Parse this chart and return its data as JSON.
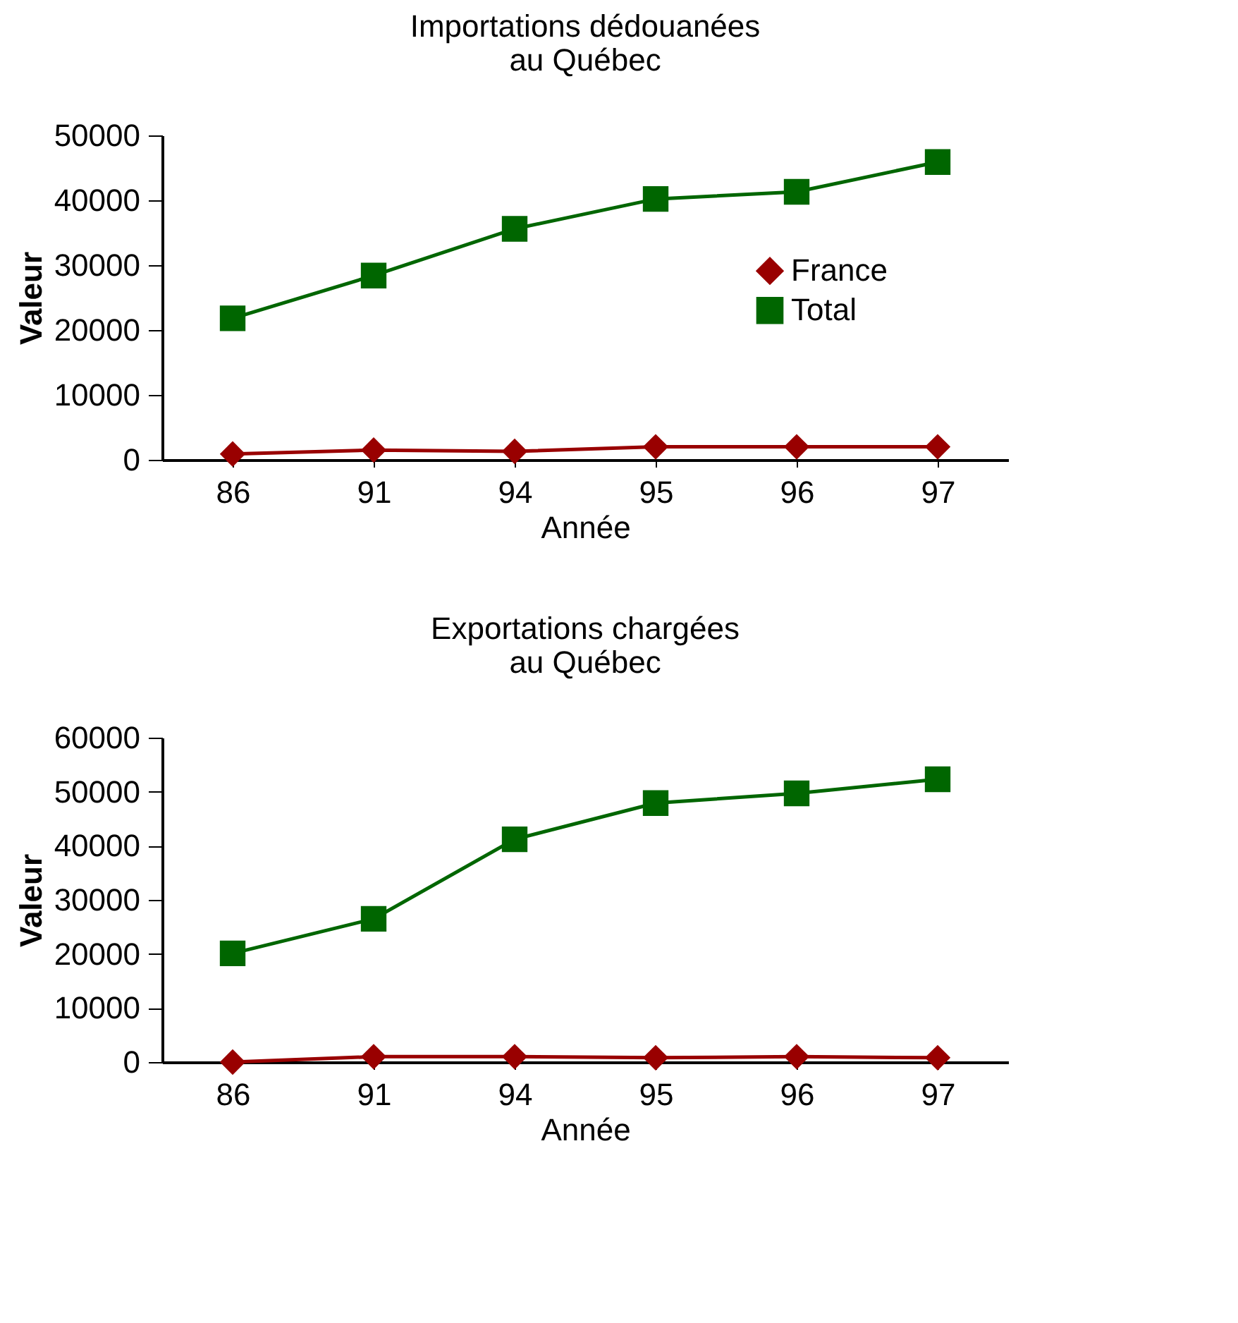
{
  "chart_data": [
    {
      "type": "line",
      "title": "Importations dédouanées\nau Québec",
      "xlabel": "Année",
      "ylabel": "Valeur",
      "categories": [
        "86",
        "91",
        "94",
        "95",
        "96",
        "97"
      ],
      "ylim": [
        0,
        50000
      ],
      "yticks": [
        0,
        10000,
        20000,
        30000,
        40000,
        50000
      ],
      "legend": "right",
      "series": [
        {
          "name": "France",
          "color": "#990000",
          "marker": "diamond",
          "values": [
            900,
            1500,
            1300,
            2000,
            2000,
            2000
          ]
        },
        {
          "name": "Total",
          "color": "#006600",
          "marker": "square",
          "values": [
            21800,
            28400,
            35600,
            40200,
            41300,
            45900
          ]
        }
      ]
    },
    {
      "type": "line",
      "title": "Exportations chargées\nau Québec",
      "xlabel": "Année",
      "ylabel": "Valeur",
      "categories": [
        "86",
        "91",
        "94",
        "95",
        "96",
        "97"
      ],
      "ylim": [
        0,
        60000
      ],
      "yticks": [
        0,
        10000,
        20000,
        30000,
        40000,
        50000,
        60000
      ],
      "legend": "right",
      "series": [
        {
          "name": "France",
          "color": "#990000",
          "marker": "diamond",
          "values": [
            0,
            1000,
            1000,
            800,
            1000,
            800
          ]
        },
        {
          "name": "Total",
          "color": "#006600",
          "marker": "square",
          "values": [
            20100,
            26500,
            41200,
            47900,
            49700,
            52300
          ]
        }
      ]
    }
  ]
}
